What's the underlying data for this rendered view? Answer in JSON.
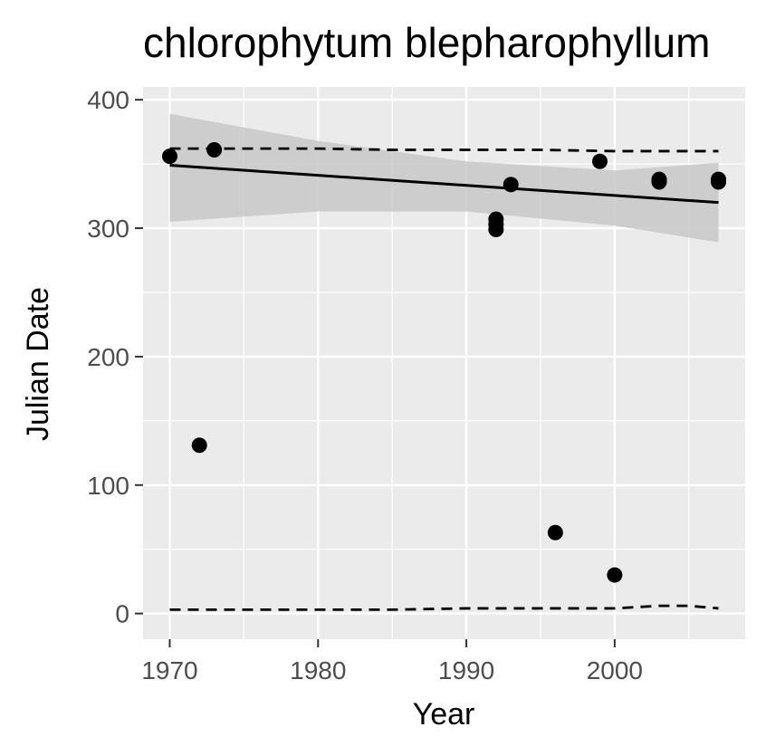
{
  "chart_data": {
    "type": "scatter",
    "title": "chlorophytum blepharophyllum",
    "xlabel": "Year",
    "ylabel": "Julian Date",
    "xlim": [
      1968.2,
      2008.8
    ],
    "ylim": [
      -20,
      410
    ],
    "x_ticks": [
      1970,
      1980,
      1990,
      2000
    ],
    "y_ticks": [
      0,
      100,
      200,
      300,
      400
    ],
    "grid": true,
    "points": [
      {
        "x": 1970,
        "y": 356
      },
      {
        "x": 1972,
        "y": 131
      },
      {
        "x": 1973,
        "y": 361
      },
      {
        "x": 1992,
        "y": 307
      },
      {
        "x": 1992,
        "y": 303
      },
      {
        "x": 1992,
        "y": 299
      },
      {
        "x": 1993,
        "y": 334
      },
      {
        "x": 1996,
        "y": 63
      },
      {
        "x": 1999,
        "y": 352
      },
      {
        "x": 2000,
        "y": 30
      },
      {
        "x": 2003,
        "y": 338
      },
      {
        "x": 2003,
        "y": 336
      },
      {
        "x": 2007,
        "y": 338
      },
      {
        "x": 2007,
        "y": 336
      }
    ],
    "trend_line": {
      "x": [
        1970,
        2007
      ],
      "y": [
        349,
        320
      ]
    },
    "confidence_band": {
      "x": [
        1970,
        1980,
        1990,
        2000,
        2007
      ],
      "upper": [
        389,
        368,
        352,
        345,
        351
      ],
      "lower": [
        305,
        313,
        313,
        302,
        289
      ]
    },
    "upper_dashed": {
      "x": [
        1970,
        1975,
        1980,
        1985,
        1990,
        1995,
        2000,
        2005,
        2007
      ],
      "y": [
        362,
        362,
        362,
        361,
        361,
        361,
        360,
        360,
        360
      ]
    },
    "lower_dashed": {
      "x": [
        1970,
        1975,
        1980,
        1985,
        1990,
        1995,
        2000,
        2003,
        2005,
        2007
      ],
      "y": [
        3,
        3,
        3,
        3,
        4,
        4,
        4,
        6,
        6,
        4
      ]
    },
    "colors": {
      "panel_bg": "#ebebeb",
      "grid": "#ffffff",
      "point": "#000000",
      "band": "#c8c8c8"
    }
  }
}
